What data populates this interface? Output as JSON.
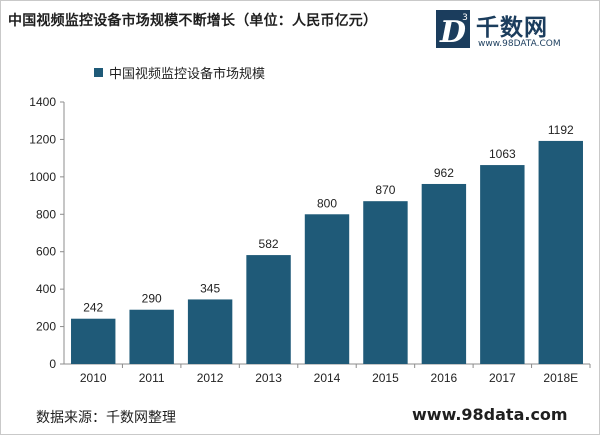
{
  "header": {
    "title": "中国视频监控设备市场规模不断增长（单位：人民币亿元）"
  },
  "logo": {
    "name": "千数网",
    "url": "www.98DATA.COM",
    "mark_letter": "D",
    "mark_superscript": "3"
  },
  "footer": {
    "source": "数据来源：千数网整理",
    "url": "www.98data.com"
  },
  "colors": {
    "bar": "#1f5a78",
    "axis": "#8c8c8c",
    "logo": "#1b3d5d"
  },
  "chart_data": {
    "type": "bar",
    "categories": [
      "2010",
      "2011",
      "2012",
      "2013",
      "2014",
      "2015",
      "2016",
      "2017",
      "2018E"
    ],
    "series": [
      {
        "name": "中国视频监控设备市场规模",
        "values": [
          242,
          290,
          345,
          582,
          800,
          870,
          962,
          1063,
          1192
        ]
      }
    ],
    "yticks": [
      0,
      200,
      400,
      600,
      800,
      1000,
      1200,
      1400
    ],
    "ylim": [
      0,
      1400
    ],
    "grid": false,
    "legend": "top-left",
    "show_data_labels": true
  }
}
